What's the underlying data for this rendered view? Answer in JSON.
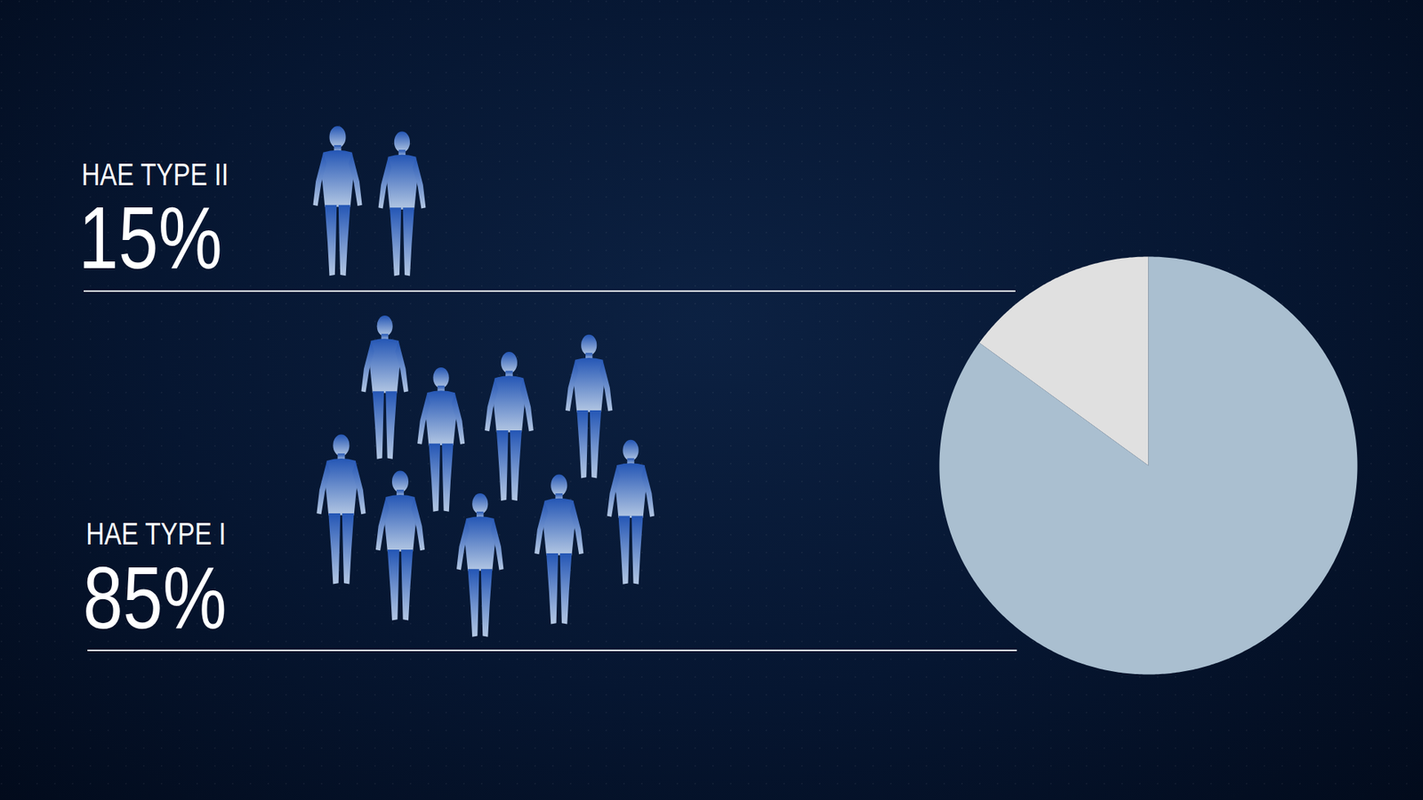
{
  "chart_data": {
    "type": "pie",
    "categories": [
      "HAE TYPE II",
      "HAE TYPE I"
    ],
    "values": [
      15,
      85
    ],
    "value_labels": [
      "15%",
      "85%"
    ],
    "colors": [
      "#e0e0e0",
      "#aabfd0"
    ],
    "data_labels": true
  }
}
